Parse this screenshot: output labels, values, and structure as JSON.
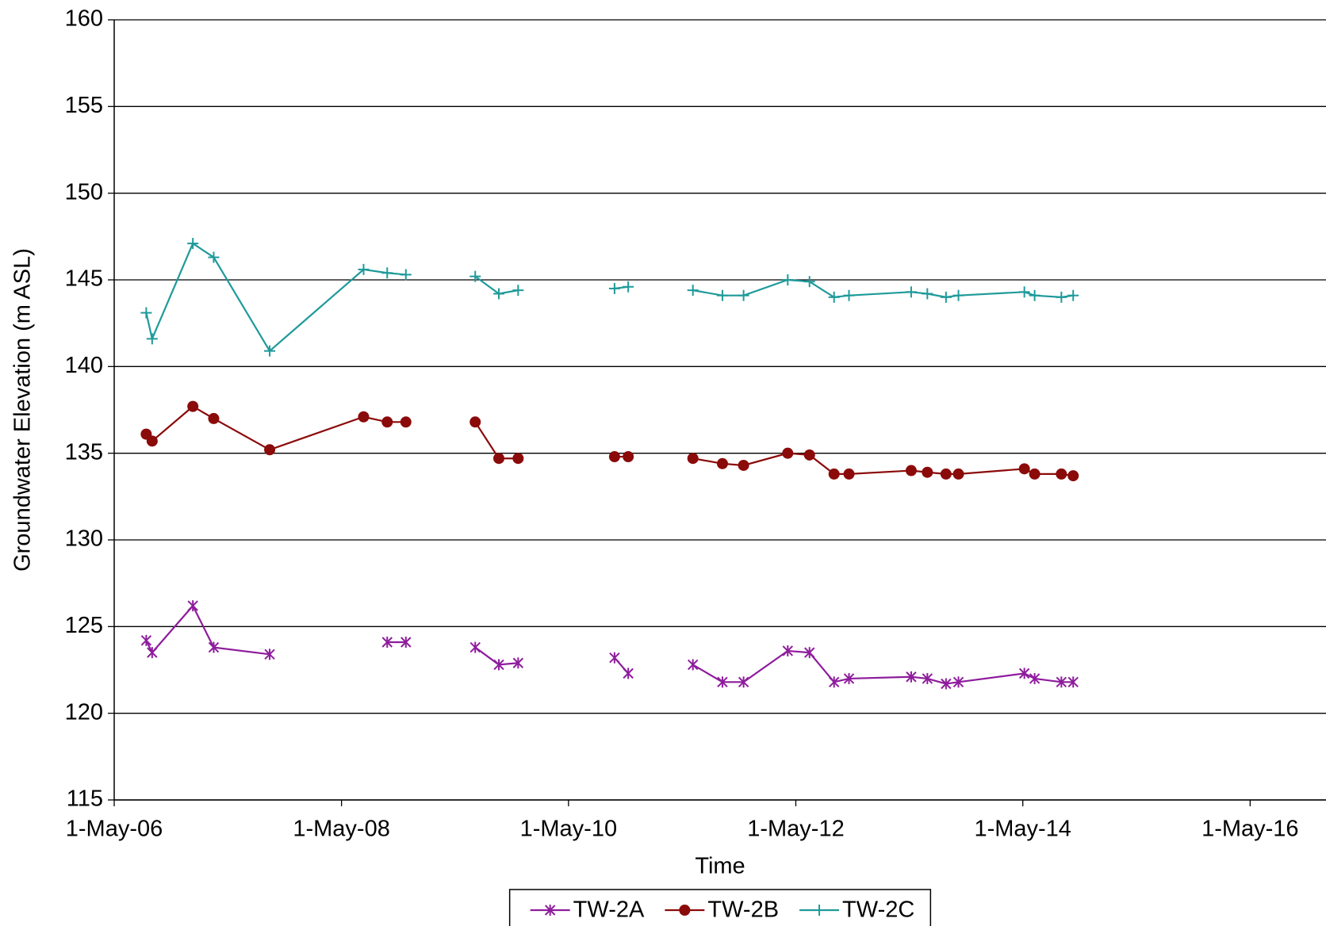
{
  "chart_data": {
    "type": "line",
    "x_title": "Time",
    "y_title": "Groundwater Elevation (m ASL)",
    "x": [
      "2006-08-12",
      "2006-08-31",
      "2007-01-09",
      "2007-03-17",
      "2007-09-13",
      "2008-07-11",
      "2008-09-25",
      "2008-11-24",
      null,
      "2009-07-05",
      "2009-09-19",
      "2009-11-20",
      null,
      "2010-09-26",
      "2010-11-09",
      null,
      "2011-06-05",
      "2011-09-08",
      "2011-11-15",
      "2012-04-05",
      "2012-06-14",
      "2012-09-01",
      "2012-10-19",
      "2013-05-07",
      "2013-06-28",
      "2013-08-27",
      "2013-10-06",
      "2014-05-06",
      "2014-06-08",
      "2014-09-02",
      "2014-10-10"
    ],
    "series": [
      {
        "name": "TW-2A",
        "color": "#8e1c9c",
        "marker": "star",
        "values": [
          124.2,
          123.5,
          126.2,
          123.8,
          123.4,
          null,
          124.1,
          124.1,
          null,
          123.8,
          122.8,
          122.9,
          null,
          123.2,
          122.3,
          null,
          122.8,
          121.8,
          121.8,
          123.6,
          123.5,
          121.8,
          122.0,
          122.1,
          122.0,
          121.7,
          121.8,
          122.3,
          122.0,
          121.8,
          121.8
        ]
      },
      {
        "name": "TW-2B",
        "color": "#8b0a0a",
        "marker": "circle",
        "values": [
          136.1,
          135.7,
          137.7,
          137.0,
          135.2,
          137.1,
          136.8,
          136.8,
          null,
          136.8,
          134.7,
          134.7,
          null,
          134.8,
          134.8,
          null,
          134.7,
          134.4,
          134.3,
          135.0,
          134.9,
          133.8,
          133.8,
          134.0,
          133.9,
          133.8,
          133.8,
          134.1,
          133.8,
          133.8,
          133.7
        ]
      },
      {
        "name": "TW-2C",
        "color": "#1f9a9a",
        "marker": "plus",
        "values": [
          143.1,
          141.6,
          147.1,
          146.3,
          140.9,
          145.6,
          145.4,
          145.3,
          null,
          145.2,
          144.2,
          144.4,
          null,
          144.5,
          144.6,
          null,
          144.4,
          144.1,
          144.1,
          145.0,
          144.9,
          144.0,
          144.1,
          144.3,
          144.2,
          144.0,
          144.1,
          144.3,
          144.1,
          144.0,
          144.1
        ]
      }
    ],
    "xlim": [
      "2006-05-01",
      "2016-12-31"
    ],
    "xticks": [
      {
        "value": "2006-05-01",
        "label": "1-May-06"
      },
      {
        "value": "2008-05-01",
        "label": "1-May-08"
      },
      {
        "value": "2010-05-01",
        "label": "1-May-10"
      },
      {
        "value": "2012-05-01",
        "label": "1-May-12"
      },
      {
        "value": "2014-05-01",
        "label": "1-May-14"
      },
      {
        "value": "2016-05-01",
        "label": "1-May-16"
      }
    ],
    "ylim": [
      115,
      160
    ],
    "yticks": [
      115,
      120,
      125,
      130,
      135,
      140,
      145,
      150,
      155,
      160
    ],
    "grid": true
  }
}
